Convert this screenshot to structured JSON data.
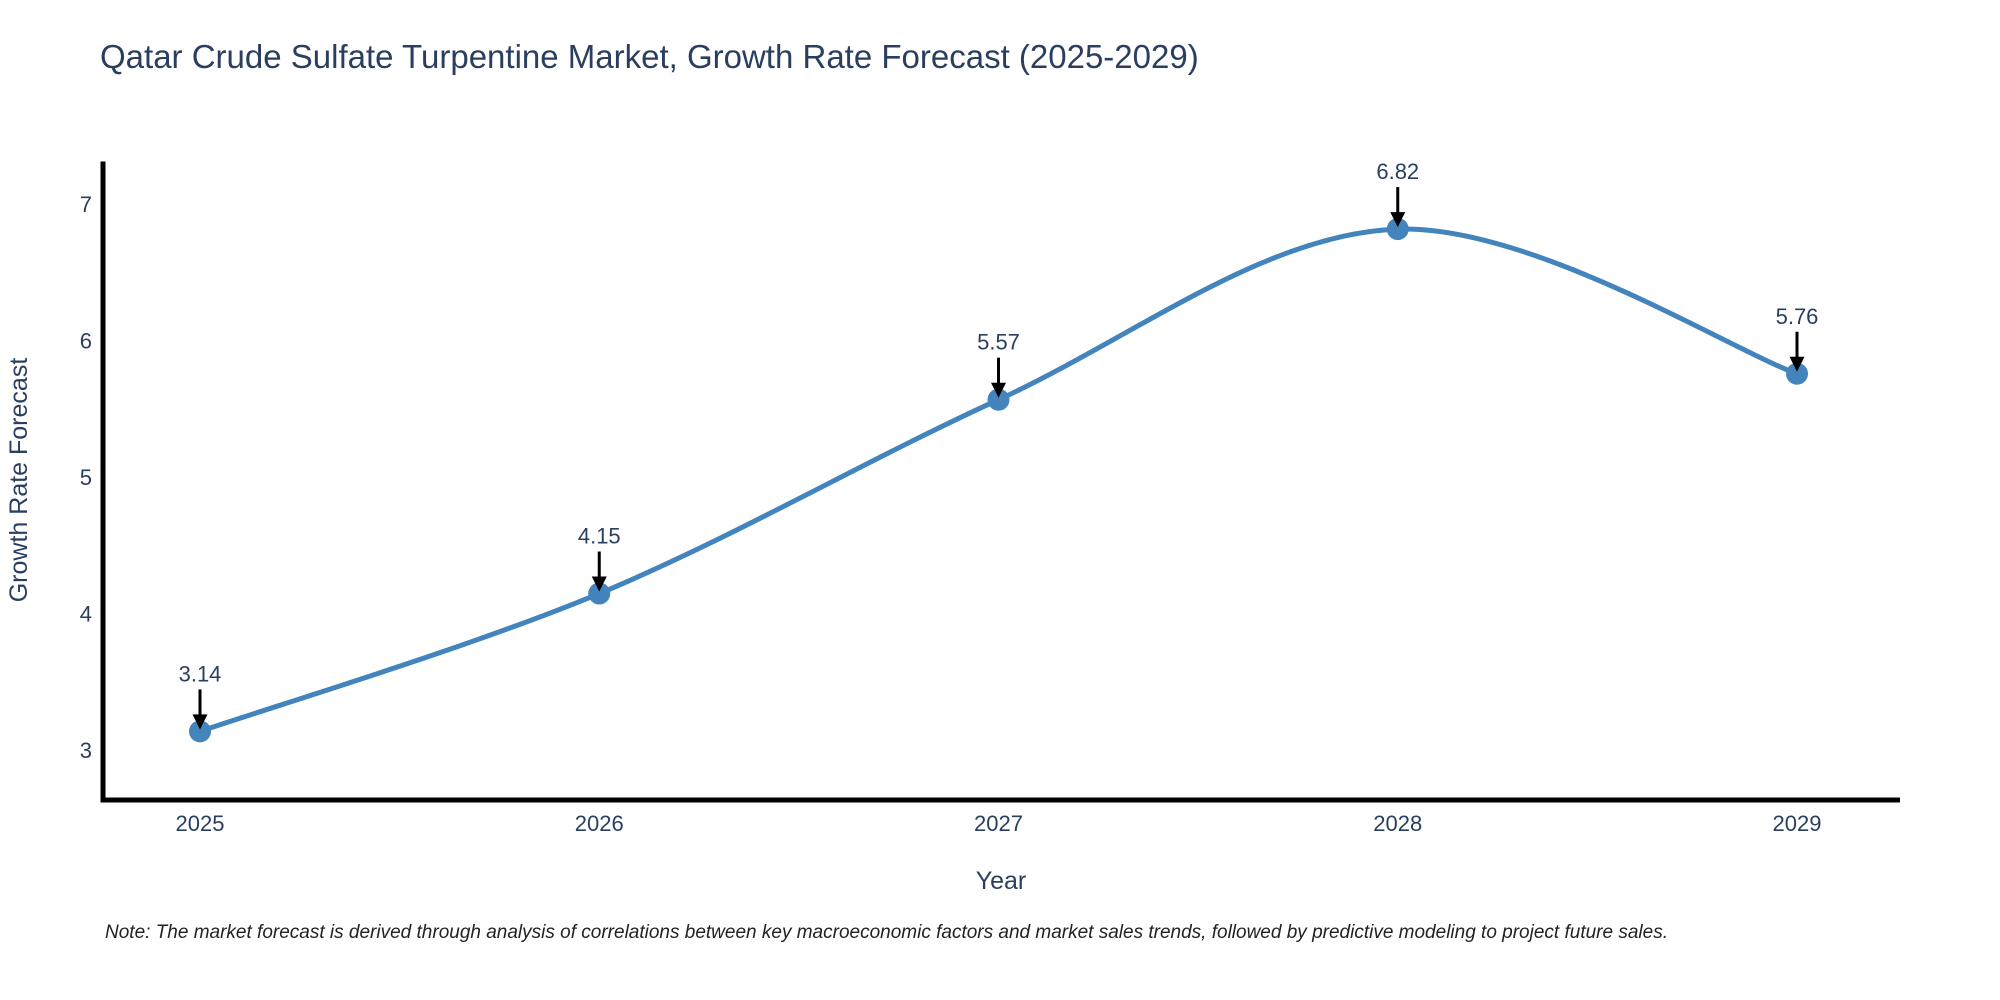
{
  "chart_data": {
    "type": "line",
    "title": "Qatar Crude Sulfate Turpentine Market, Growth Rate Forecast (2025-2029)",
    "xlabel": "Year",
    "ylabel": "Growth Rate Forecast",
    "categories": [
      "2025",
      "2026",
      "2027",
      "2028",
      "2029"
    ],
    "series": [
      {
        "name": "Growth Rate Forecast",
        "values": [
          3.14,
          4.15,
          5.57,
          6.82,
          5.76
        ]
      }
    ],
    "point_labels": [
      "3.14",
      "4.15",
      "5.57",
      "6.82",
      "5.76"
    ],
    "y_ticks": [
      "3",
      "4",
      "5",
      "6",
      "7"
    ],
    "y_tick_values": [
      3,
      4,
      5,
      6,
      7
    ],
    "ylim": [
      2.63,
      7.35
    ],
    "line_shape": "spline",
    "grid": false,
    "legend_position": "none",
    "line_color": "#4384BD",
    "marker_color": "#4384BD",
    "annotation_color": "#000000",
    "text_color": "#2a3f5f"
  },
  "note": "Note: The market forecast is derived through analysis of correlations between key macroeconomic factors and market sales trends, followed by predictive modeling to project future sales."
}
